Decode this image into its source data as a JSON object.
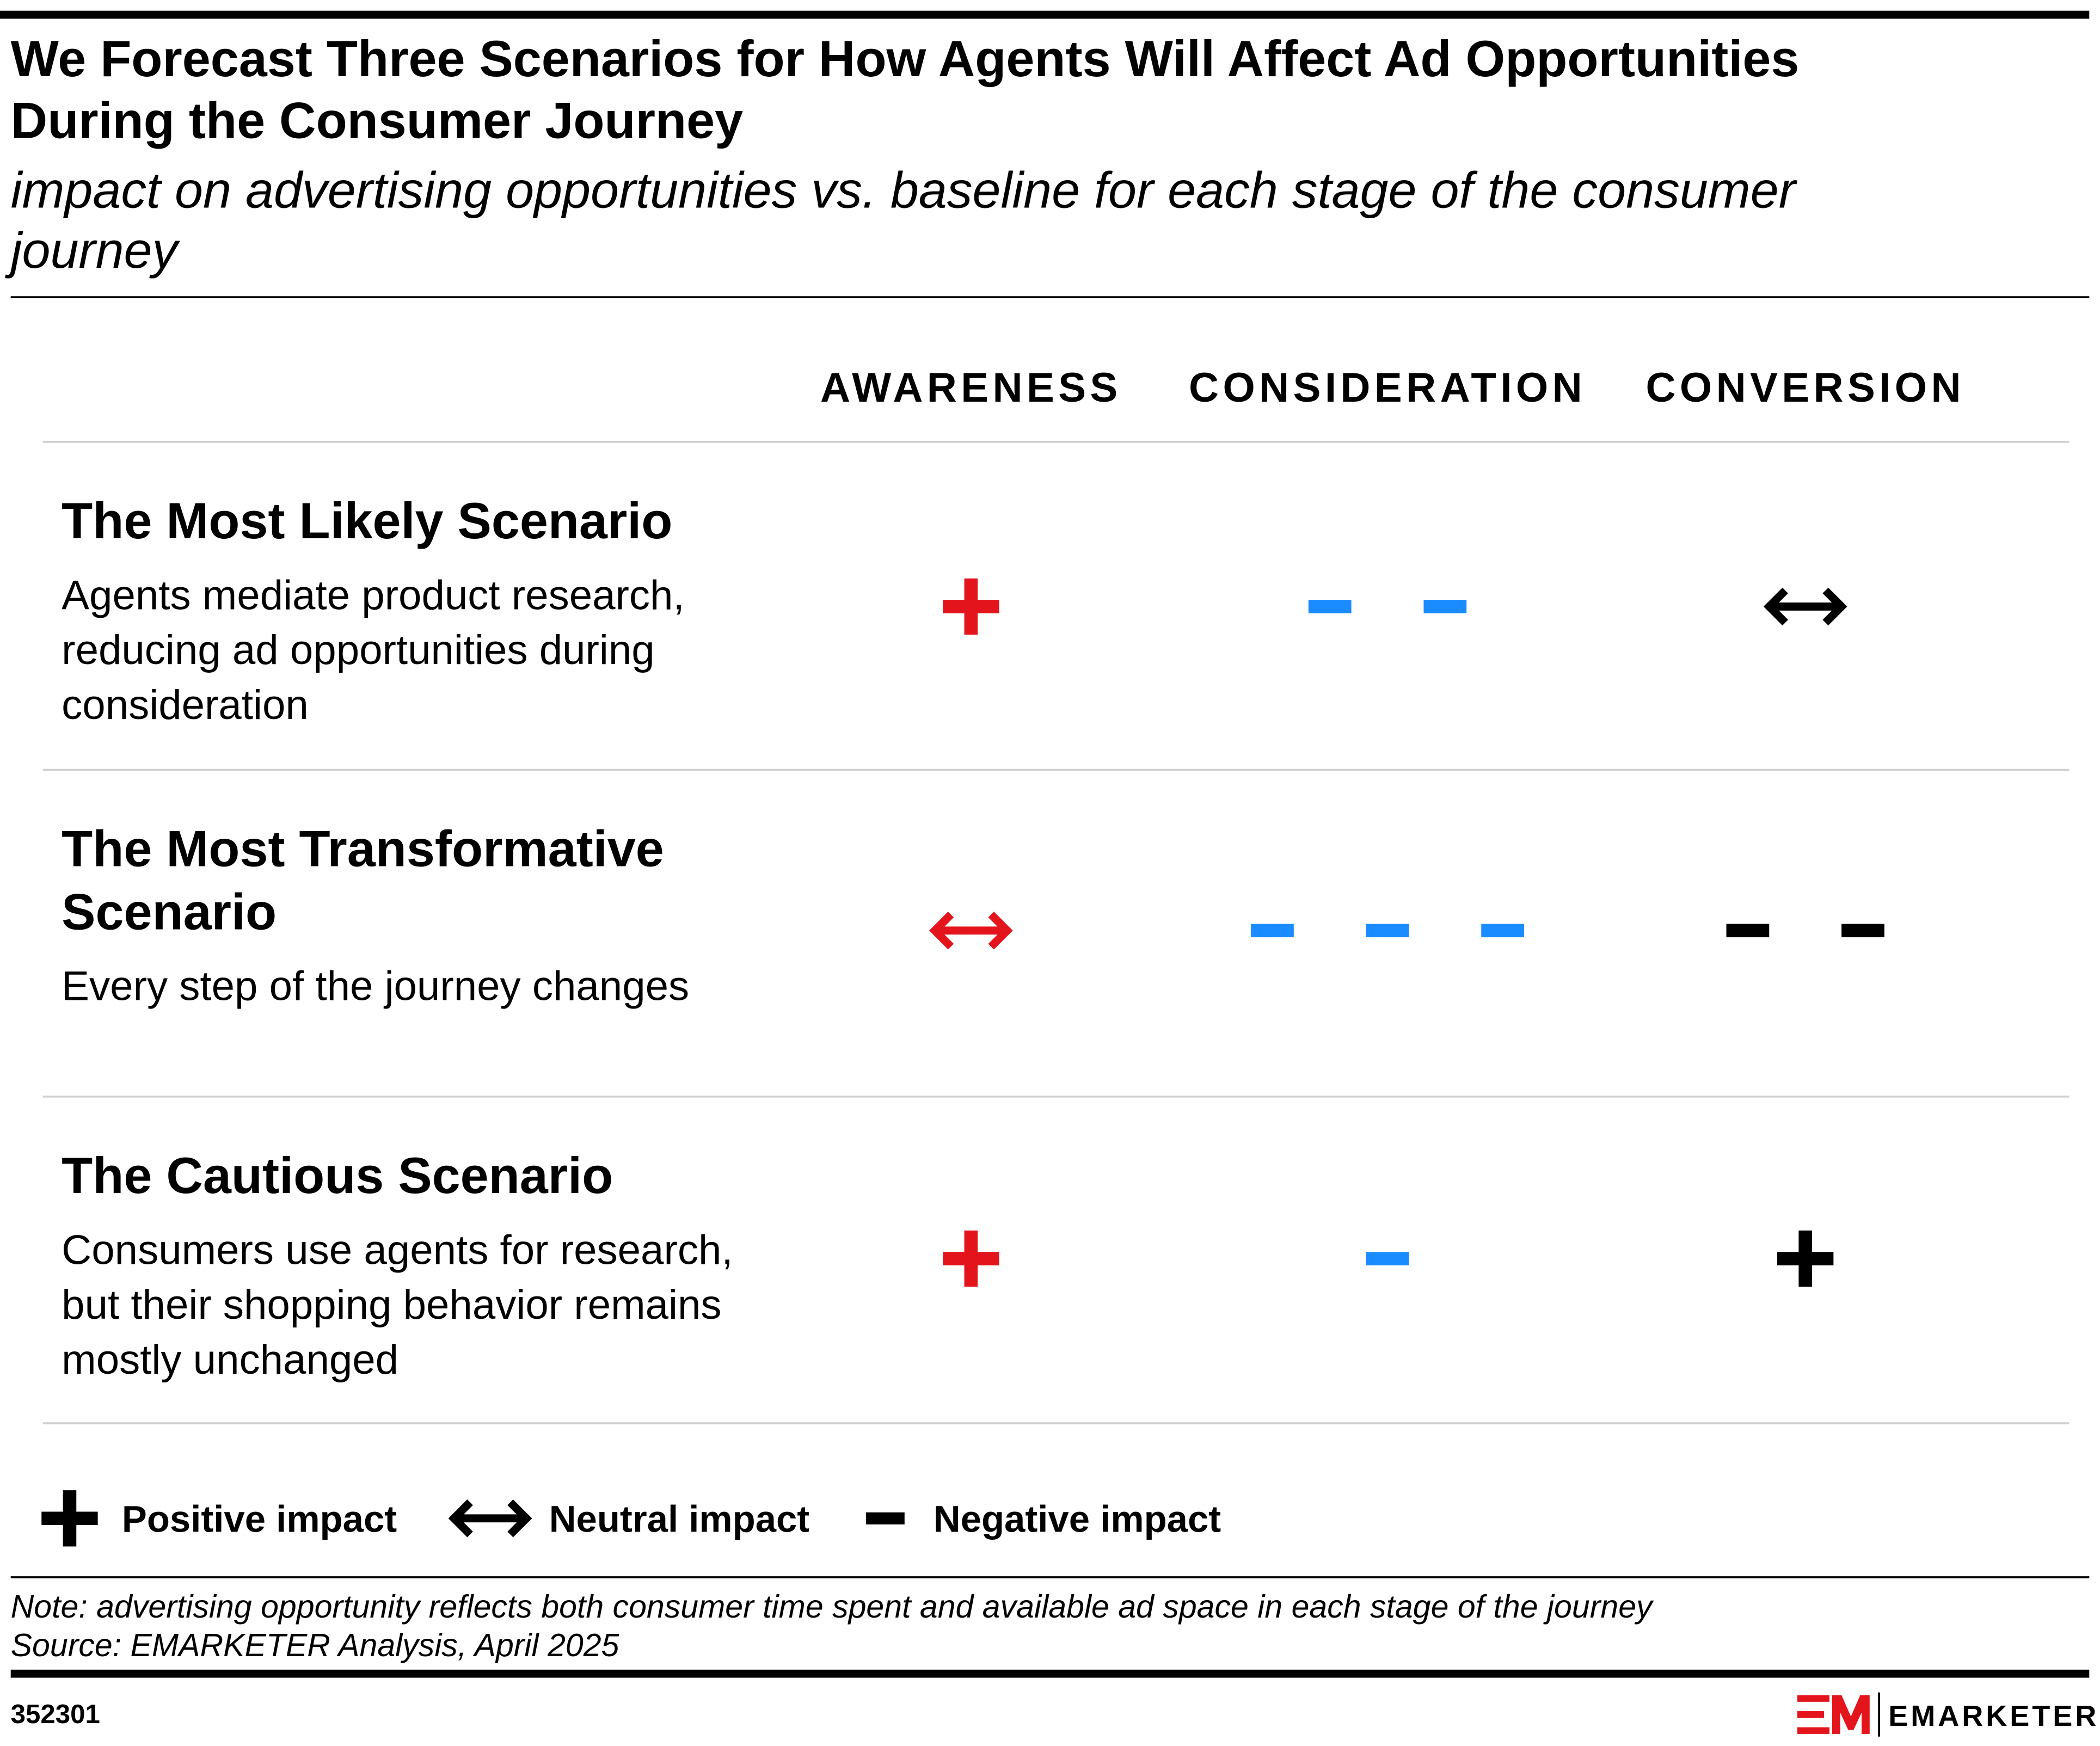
{
  "header": {
    "title": [
      "We Forecast Three Scenarios for How Agents Will Affect Ad Opportunities",
      "During the Consumer Journey"
    ],
    "subtitle": [
      "impact on advertising opportunities vs. baseline for each stage of the consumer",
      "journey"
    ]
  },
  "columns": [
    {
      "label": "AWARENESS",
      "color": "#e3141b"
    },
    {
      "label": "CONSIDERATION",
      "color": "#1a8cff"
    },
    {
      "label": "CONVERSION",
      "color": "#000000"
    }
  ],
  "rows": [
    {
      "title": [
        "The Most Likely Scenario"
      ],
      "description": [
        "Agents mediate product research,",
        "reducing ad opportunities during",
        "consideration"
      ],
      "cells": [
        [
          "plus"
        ],
        [
          "minus",
          "minus"
        ],
        [
          "arrow"
        ]
      ]
    },
    {
      "title": [
        "The Most Transformative",
        "Scenario"
      ],
      "description": [
        "Every step of the journey changes"
      ],
      "cells": [
        [
          "arrow"
        ],
        [
          "minus",
          "minus",
          "minus"
        ],
        [
          "minus",
          "minus"
        ]
      ]
    },
    {
      "title": [
        "The Cautious Scenario"
      ],
      "description": [
        "Consumers use agents for research,",
        "but their shopping behavior remains",
        "mostly unchanged"
      ],
      "cells": [
        [
          "plus"
        ],
        [
          "minus"
        ],
        [
          "plus"
        ]
      ]
    }
  ],
  "legend": [
    {
      "symbol": "plus",
      "label": "Positive impact"
    },
    {
      "symbol": "arrow",
      "label": "Neutral impact"
    },
    {
      "symbol": "minus",
      "label": "Negative impact"
    }
  ],
  "footer": {
    "note": "Note: advertising opportunity reflects both consumer time spent and available ad space in each stage of the journey",
    "source": "Source: EMARKETER Analysis, April 2025",
    "id": "352301",
    "brand": "EMARKETER"
  }
}
